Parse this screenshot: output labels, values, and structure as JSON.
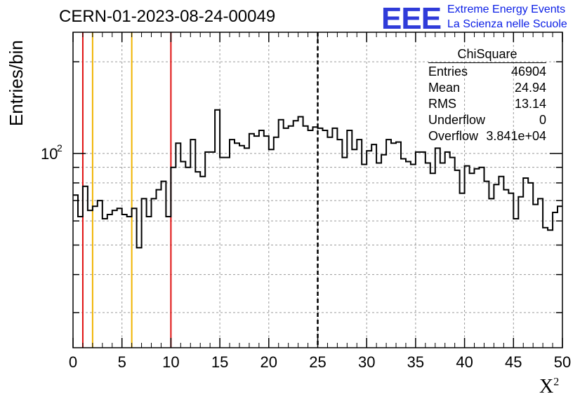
{
  "header": {
    "title": "CERN-01-2023-08-24-00049",
    "logo_text": "EEE",
    "logo_line1": "Extreme Energy Events",
    "logo_line2": "La Scienza nelle Scuole"
  },
  "stats_box": {
    "name": "ChiSquare",
    "rows": [
      {
        "label": "Entries",
        "value": "46904"
      },
      {
        "label": "Mean",
        "value": "24.94"
      },
      {
        "label": "RMS",
        "value": "13.14"
      },
      {
        "label": "Underflow",
        "value": "0"
      },
      {
        "label": "Overflow",
        "value": "3.841e+04"
      }
    ]
  },
  "chart_data": {
    "type": "histogram",
    "xlabel": "X²",
    "ylabel": "Entries/bin",
    "xlim": [
      0,
      50
    ],
    "ylim": [
      23,
      250
    ],
    "yscale": "log",
    "x_ticks": [
      0,
      5,
      10,
      15,
      20,
      25,
      30,
      35,
      40,
      45,
      50
    ],
    "y_tick_label": "10",
    "y_tick_exponent": "2",
    "grid": true,
    "bin_width": 0.5,
    "bin_edges_start": 0,
    "values": [
      73,
      62,
      78,
      65,
      67,
      70,
      61,
      63,
      65,
      66,
      63,
      62,
      66,
      49,
      71,
      62,
      71,
      76,
      81,
      62,
      90,
      108,
      94,
      90,
      111,
      87,
      84,
      101,
      101,
      139,
      97,
      97,
      111,
      108,
      106,
      104,
      116,
      114,
      119,
      114,
      103,
      113,
      129,
      121,
      123,
      128,
      132,
      123,
      119,
      122,
      121,
      119,
      113,
      121,
      111,
      97,
      119,
      103,
      111,
      92,
      102,
      107,
      93,
      99,
      111,
      108,
      109,
      96,
      94,
      92,
      101,
      101,
      93,
      86,
      104,
      93,
      101,
      97,
      88,
      74,
      91,
      86,
      89,
      90,
      81,
      71,
      79,
      84,
      76,
      74,
      61,
      72,
      83,
      80,
      68,
      71,
      57,
      56,
      64,
      67
    ],
    "vlines": [
      {
        "x": 1,
        "color": "#e01010",
        "style": "solid"
      },
      {
        "x": 2,
        "color": "#f0b400",
        "style": "solid"
      },
      {
        "x": 6,
        "color": "#f0b400",
        "style": "solid"
      },
      {
        "x": 10,
        "color": "#e01010",
        "style": "solid"
      },
      {
        "x": 25,
        "color": "#000000",
        "style": "dashed"
      }
    ]
  }
}
